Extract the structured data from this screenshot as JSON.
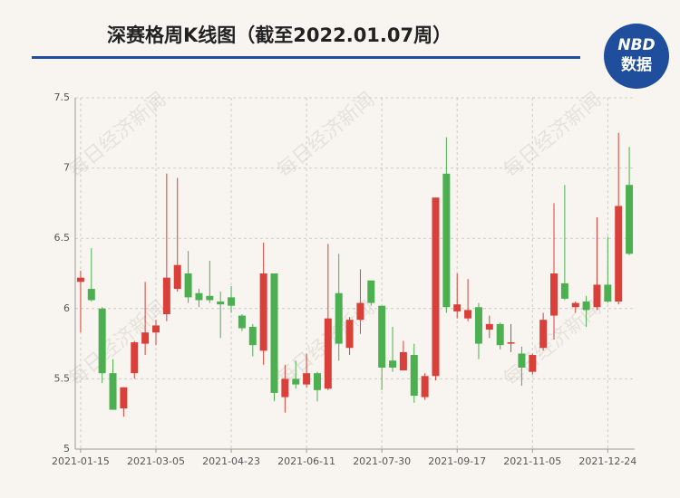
{
  "chart_data": {
    "type": "candlestick",
    "title": "深赛格周K线图（截至2022.01.07周）",
    "logo": {
      "top": "NBD",
      "bottom": "数据"
    },
    "watermark": "每日经济新闻",
    "categories": [
      "2021-01-15",
      null,
      null,
      null,
      null,
      null,
      null,
      "2021-03-05",
      null,
      null,
      null,
      null,
      null,
      null,
      "2021-04-23",
      null,
      null,
      null,
      null,
      null,
      null,
      "2021-06-11",
      null,
      null,
      null,
      null,
      null,
      null,
      "2021-07-30",
      null,
      null,
      null,
      null,
      null,
      null,
      "2021-09-17",
      null,
      null,
      null,
      null,
      null,
      null,
      "2021-11-05",
      null,
      null,
      null,
      null,
      null,
      null,
      "2021-12-24",
      null,
      null
    ],
    "open": [
      6.19,
      6.14,
      6.0,
      5.54,
      5.29,
      5.54,
      5.75,
      5.83,
      5.96,
      6.14,
      6.25,
      6.11,
      6.09,
      6.05,
      6.08,
      5.95,
      5.87,
      5.7,
      6.25,
      5.37,
      5.5,
      5.46,
      5.54,
      5.43,
      6.11,
      5.72,
      5.92,
      6.2,
      6.02,
      5.63,
      5.56,
      5.67,
      5.37,
      5.52,
      6.96,
      5.98,
      5.93,
      6.01,
      5.85,
      5.89,
      5.75,
      5.68,
      5.55,
      5.72,
      5.95,
      6.18,
      6.01,
      6.05,
      6.01,
      6.17,
      6.05,
      6.88
    ],
    "close": [
      6.22,
      6.06,
      5.54,
      5.28,
      5.44,
      5.76,
      5.83,
      5.88,
      6.22,
      6.31,
      6.08,
      6.06,
      6.06,
      6.03,
      6.02,
      5.86,
      5.74,
      6.25,
      5.4,
      5.5,
      5.46,
      5.54,
      5.42,
      5.93,
      5.75,
      5.92,
      6.04,
      6.04,
      5.58,
      5.58,
      5.69,
      5.38,
      5.52,
      6.79,
      6.01,
      6.03,
      5.99,
      5.75,
      5.89,
      5.74,
      5.76,
      5.58,
      5.67,
      5.92,
      6.25,
      6.07,
      6.04,
      5.99,
      6.17,
      6.05,
      6.73,
      6.39
    ],
    "low": [
      5.83,
      6.05,
      5.47,
      5.28,
      5.23,
      5.5,
      5.67,
      5.74,
      5.91,
      6.12,
      6.04,
      6.01,
      6.04,
      5.79,
      5.97,
      5.84,
      5.66,
      5.6,
      5.34,
      5.26,
      5.43,
      5.44,
      5.34,
      5.42,
      5.63,
      5.67,
      5.82,
      6.02,
      5.42,
      5.55,
      5.56,
      5.33,
      5.35,
      5.49,
      5.97,
      5.93,
      5.91,
      5.64,
      5.79,
      5.71,
      5.69,
      5.45,
      5.53,
      5.7,
      5.78,
      6.06,
      5.97,
      5.87,
      5.99,
      6.04,
      6.03,
      6.38
    ],
    "high": [
      6.27,
      6.43,
      6.01,
      5.64,
      5.44,
      5.77,
      6.19,
      5.92,
      6.96,
      6.93,
      6.41,
      6.14,
      6.34,
      6.12,
      6.16,
      5.96,
      5.89,
      6.47,
      6.25,
      5.6,
      5.63,
      5.68,
      5.55,
      6.46,
      6.39,
      5.94,
      6.28,
      6.2,
      6.02,
      5.87,
      5.77,
      5.75,
      5.54,
      6.79,
      7.22,
      6.25,
      6.21,
      6.04,
      5.95,
      5.9,
      5.89,
      5.73,
      5.68,
      5.97,
      6.75,
      6.88,
      6.05,
      6.09,
      6.65,
      6.51,
      7.25,
      7.15
    ],
    "up_color": "#d9403a",
    "down_color": "#4caf50",
    "ylim": [
      5,
      7.5
    ],
    "yticks": [
      5,
      5.5,
      6,
      6.5,
      7,
      7.5
    ],
    "grid": true
  }
}
